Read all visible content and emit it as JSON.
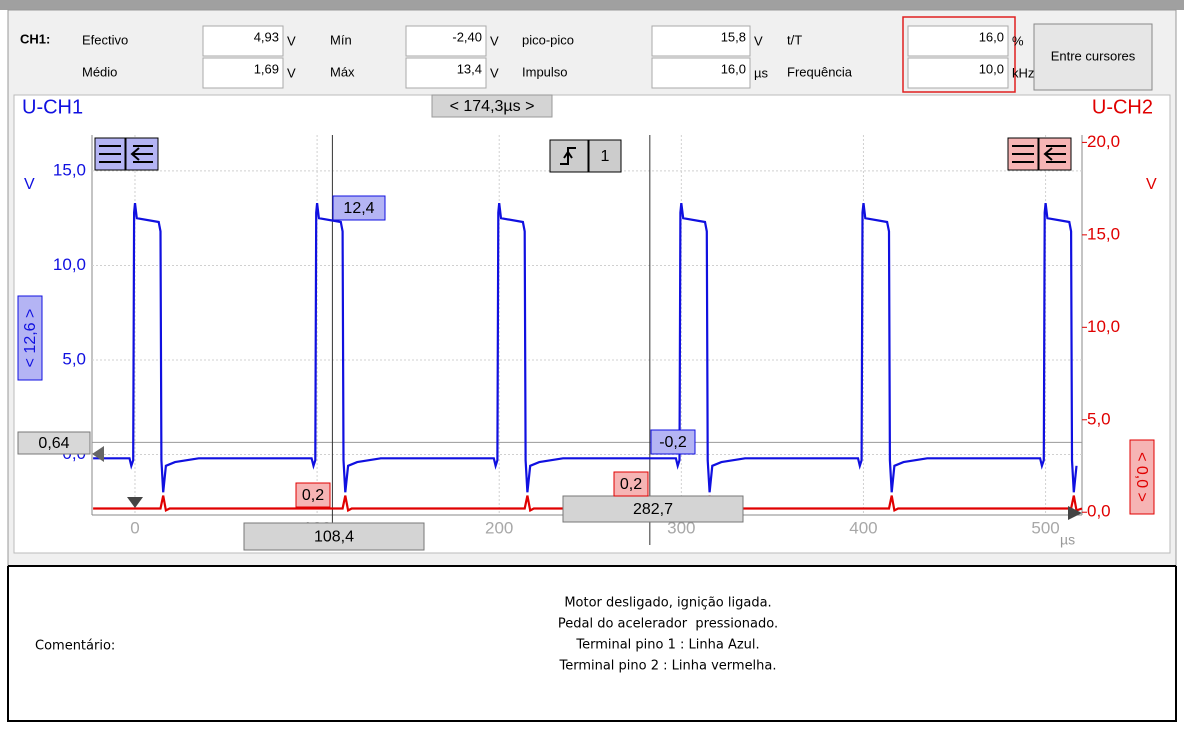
{
  "measurements": {
    "channel": "CH1:",
    "rows": [
      [
        {
          "label": "Efectivo",
          "value": "4,93",
          "unit": "V"
        },
        {
          "label": "Mín",
          "value": "-2,40",
          "unit": "V"
        },
        {
          "label": "pico-pico",
          "value": "15,8",
          "unit": "V"
        },
        {
          "label": "t/T",
          "value": "16,0",
          "unit": "%"
        }
      ],
      [
        {
          "label": "Médio",
          "value": "1,69",
          "unit": "V"
        },
        {
          "label": "Máx",
          "value": "13,4",
          "unit": "V"
        },
        {
          "label": "Impulso",
          "value": "16,0",
          "unit": "µs"
        },
        {
          "label": "Frequência",
          "value": "10,0",
          "unit": "kHz"
        }
      ]
    ],
    "button": "Entre cursores"
  },
  "chart_data": {
    "type": "line",
    "xlim": [
      -23.6,
      520
    ],
    "xticks": [
      0,
      100,
      200,
      300,
      400,
      500
    ],
    "x_unit": "µs",
    "ylim": [
      -3.2,
      16.9
    ],
    "yticks": [
      {
        "value": 0,
        "label": "0,0"
      },
      {
        "value": 5,
        "label": "5,0"
      },
      {
        "value": 10,
        "label": "10,0"
      },
      {
        "value": 15,
        "label": "15,0"
      }
    ],
    "y_unit": "V",
    "y2lim": [
      -0.15,
      20.4
    ],
    "y2ticks": [
      {
        "value": 0,
        "label": "0,0"
      },
      {
        "value": 5,
        "label": "5,0"
      },
      {
        "value": 10,
        "label": "10,0"
      },
      {
        "value": 15,
        "label": "15,0"
      },
      {
        "value": 20,
        "label": "20,0"
      }
    ],
    "y2_unit": "V",
    "grid": true,
    "series": [
      {
        "name": "U-CH1",
        "color": "#1010e0",
        "x": [
          -23,
          -3,
          -2,
          -1,
          -0.5,
          0,
          1,
          13,
          14,
          14.5,
          15.5,
          17,
          22,
          35,
          97,
          98,
          99,
          99.5,
          100,
          101,
          113,
          114,
          114.5,
          115.5,
          117,
          122,
          135,
          197,
          198,
          199,
          199.5,
          200,
          201,
          213,
          214,
          214.5,
          215.5,
          217,
          222,
          235,
          297,
          298,
          299,
          299.5,
          300,
          301,
          313,
          314,
          314.5,
          315.5,
          317,
          322,
          335,
          397,
          398,
          399,
          399.5,
          400,
          401,
          413,
          414,
          414.5,
          415.5,
          417,
          422,
          435,
          497,
          498,
          499,
          499.5,
          500,
          501,
          513,
          514,
          514.5,
          515.5,
          517
        ],
        "values": [
          -0.2,
          -0.2,
          -0.6,
          -0.3,
          12.8,
          13.3,
          12.5,
          12.3,
          11.8,
          -0.3,
          -2.0,
          -0.6,
          -0.4,
          -0.2,
          -0.2,
          -0.6,
          -0.3,
          12.8,
          13.3,
          12.5,
          12.3,
          11.8,
          -0.3,
          -2.0,
          -0.6,
          -0.4,
          -0.2,
          -0.2,
          -0.6,
          -0.3,
          12.8,
          13.3,
          12.5,
          12.3,
          11.8,
          -0.3,
          -2.0,
          -0.6,
          -0.4,
          -0.2,
          -0.2,
          -0.6,
          -0.3,
          12.8,
          13.3,
          12.5,
          12.3,
          11.8,
          -0.3,
          -2.0,
          -0.6,
          -0.4,
          -0.2,
          -0.2,
          -0.6,
          -0.3,
          12.8,
          13.3,
          12.5,
          12.3,
          11.8,
          -0.3,
          -2.0,
          -0.6,
          -0.4,
          -0.2,
          -0.2,
          -0.6,
          -0.3,
          12.8,
          13.3,
          12.5,
          12.3,
          11.8,
          -0.3,
          -2.0,
          -0.6
        ]
      },
      {
        "name": "U-CH2",
        "color": "#e00000",
        "axis": "y2",
        "x": [
          -23,
          14,
          15.5,
          17,
          19,
          114,
          115.5,
          117,
          119,
          214,
          215.5,
          217,
          219,
          314,
          315.5,
          317,
          319,
          414,
          415.5,
          417,
          419,
          514,
          515.5,
          517,
          520
        ],
        "values": [
          0.2,
          0.2,
          0.9,
          0.1,
          0.2,
          0.2,
          0.9,
          0.1,
          0.2,
          0.2,
          0.9,
          0.1,
          0.2,
          0.2,
          0.9,
          0.1,
          0.2,
          0.2,
          0.9,
          0.1,
          0.2,
          0.2,
          0.9,
          0.1,
          0.2
        ]
      }
    ],
    "x_cursors": [
      {
        "value": 108.4,
        "label": "108,4"
      },
      {
        "value": 282.7,
        "label": "282,7"
      }
    ],
    "y_cursor": {
      "value": 0.64,
      "label": "0,64"
    },
    "cursor_delta": "< 174,3µs >",
    "readouts": [
      "12,4",
      "-0,2",
      "0,2",
      "0,2"
    ],
    "offset_ch1": "< 12,6 >",
    "offset_ch2": "< 0,0 >",
    "trigger": "1"
  },
  "comment": {
    "label": "Comentário:",
    "lines": [
      "Motor desligado, ignição ligada.",
      "Pedal do acelerador  pressionado.",
      "Terminal pino 1 : Linha Azul.",
      "Terminal pino 2 : Linha vermelha."
    ]
  }
}
